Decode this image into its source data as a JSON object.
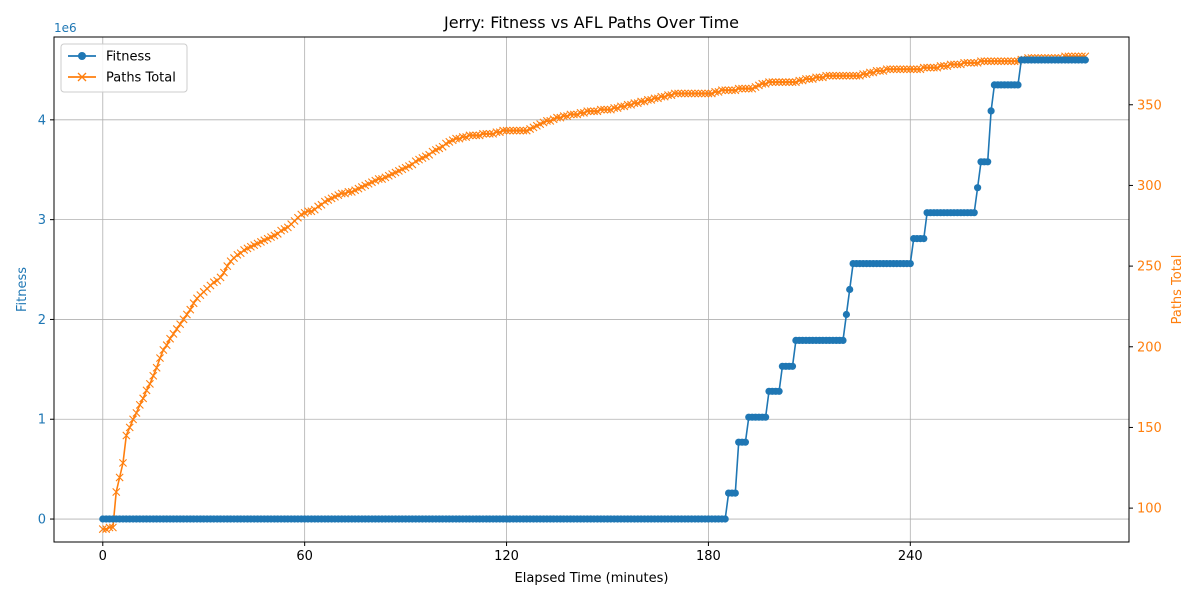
{
  "chart_data": {
    "type": "line",
    "title": "Jerry: Fitness vs AFL Paths Over Time",
    "xlabel": "Elapsed Time (minutes)",
    "ylabel": "Fitness",
    "y2label": "Paths Total",
    "y_offset_label": "1e6",
    "xlim": [
      -14.5,
      305
    ],
    "ylim": [
      -0.23,
      4.83
    ],
    "y2lim": [
      79,
      392
    ],
    "x_ticks": [
      0,
      60,
      120,
      180,
      240
    ],
    "y_ticks": [
      0,
      1,
      2,
      3,
      4
    ],
    "y2_ticks": [
      100,
      150,
      200,
      250,
      300,
      350
    ],
    "grid": true,
    "legend": {
      "position": "top-left",
      "entries": [
        "Fitness",
        "Paths Total"
      ]
    },
    "colors": {
      "fitness": "#1f77b4",
      "paths": "#ff7f0e"
    },
    "series": [
      {
        "name": "Fitness",
        "axis": "left",
        "marker": "circle",
        "x_start": 0,
        "x_end": 292,
        "x_step": 1,
        "steps": [
          {
            "x": 0,
            "y": 0.0
          },
          {
            "x": 186,
            "y": 0.26
          },
          {
            "x": 189,
            "y": 0.77
          },
          {
            "x": 192,
            "y": 1.02
          },
          {
            "x": 198,
            "y": 1.28
          },
          {
            "x": 202,
            "y": 1.53
          },
          {
            "x": 206,
            "y": 1.79
          },
          {
            "x": 221,
            "y": 2.05
          },
          {
            "x": 222,
            "y": 2.3
          },
          {
            "x": 223,
            "y": 2.56
          },
          {
            "x": 241,
            "y": 2.81
          },
          {
            "x": 245,
            "y": 3.07
          },
          {
            "x": 260,
            "y": 3.32
          },
          {
            "x": 261,
            "y": 3.58
          },
          {
            "x": 264,
            "y": 4.09
          },
          {
            "x": 265,
            "y": 4.35
          },
          {
            "x": 273,
            "y": 4.6
          }
        ]
      },
      {
        "name": "Paths Total",
        "axis": "right",
        "marker": "x",
        "x_start": 0,
        "x_end": 292,
        "x_step": 1,
        "anchors": [
          [
            0,
            87
          ],
          [
            3,
            88
          ],
          [
            4,
            110
          ],
          [
            6,
            128
          ],
          [
            7,
            145
          ],
          [
            9,
            155
          ],
          [
            12,
            168
          ],
          [
            15,
            182
          ],
          [
            18,
            198
          ],
          [
            22,
            211
          ],
          [
            25,
            220
          ],
          [
            28,
            230
          ],
          [
            32,
            238
          ],
          [
            35,
            243
          ],
          [
            38,
            253
          ],
          [
            42,
            260
          ],
          [
            46,
            264
          ],
          [
            50,
            268
          ],
          [
            55,
            274
          ],
          [
            58,
            280
          ],
          [
            60,
            283
          ],
          [
            63,
            285
          ],
          [
            66,
            290
          ],
          [
            70,
            294
          ],
          [
            75,
            297
          ],
          [
            80,
            302
          ],
          [
            85,
            306
          ],
          [
            90,
            311
          ],
          [
            95,
            317
          ],
          [
            100,
            323
          ],
          [
            104,
            328
          ],
          [
            110,
            331
          ],
          [
            115,
            332
          ],
          [
            120,
            334
          ],
          [
            126,
            334
          ],
          [
            130,
            338
          ],
          [
            135,
            342
          ],
          [
            140,
            344
          ],
          [
            145,
            346
          ],
          [
            150,
            347
          ],
          [
            155,
            349
          ],
          [
            160,
            352
          ],
          [
            165,
            354
          ],
          [
            170,
            357
          ],
          [
            180,
            357
          ],
          [
            185,
            359
          ],
          [
            193,
            360
          ],
          [
            196,
            363
          ],
          [
            200,
            364
          ],
          [
            206,
            364
          ],
          [
            210,
            366
          ],
          [
            216,
            368
          ],
          [
            225,
            368
          ],
          [
            230,
            371
          ],
          [
            235,
            372
          ],
          [
            240,
            372
          ],
          [
            248,
            373
          ],
          [
            250,
            374
          ],
          [
            258,
            376
          ],
          [
            264,
            377
          ],
          [
            272,
            377
          ],
          [
            275,
            379
          ],
          [
            280,
            379
          ],
          [
            292,
            380
          ]
        ]
      }
    ]
  }
}
